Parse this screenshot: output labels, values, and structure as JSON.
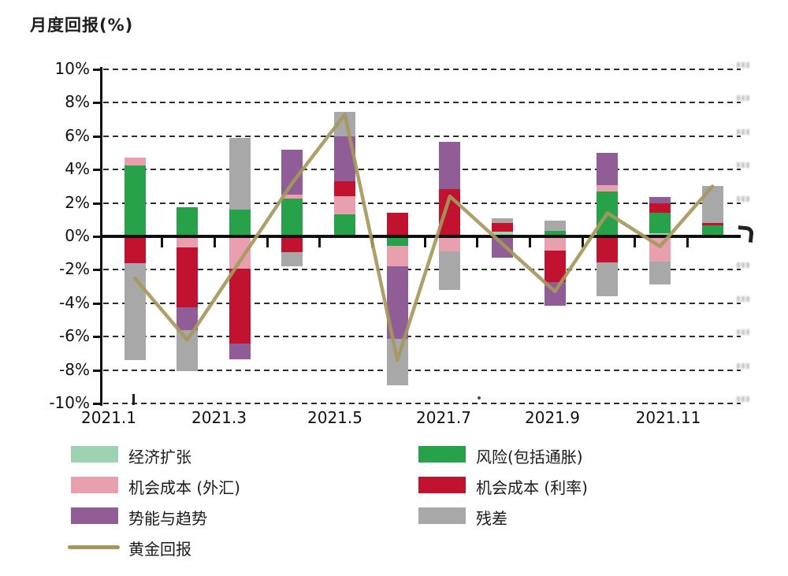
{
  "title": "月度回报(%)",
  "chart_data": {
    "type": "bar",
    "subtype": "stacked-bar-with-line-overlay",
    "title": "月度回报(%)",
    "categories": [
      "2021.1",
      "2021.2",
      "2021.3",
      "2021.4",
      "2021.5",
      "2021.6",
      "2021.7",
      "2021.8",
      "2021.9",
      "2021.10",
      "2021.11",
      "2021.12"
    ],
    "x_axis_tick_labels": [
      "2021.1",
      "2021.3",
      "2021.5",
      "2021.7",
      "2021.9",
      "2021.11"
    ],
    "y_axis": {
      "min": -10,
      "max": 10,
      "step": 2,
      "unit": "%",
      "tick_labels": [
        "10%",
        "8%",
        "6%",
        "4%",
        "2%",
        "0%",
        "-2%",
        "-4%",
        "-6%",
        "-8%",
        "-10%"
      ]
    },
    "grid": "dashed horizontal line every 2%, solid black zero line",
    "legend_position": "bottom, two columns",
    "stacking_rule": "segments stack outward from zero in series order, by sign",
    "series": [
      {
        "name": "经济扩张",
        "color": "#9ed3b1",
        "values": [
          0,
          0,
          0,
          0,
          0,
          0,
          0,
          0.3,
          0,
          0,
          0.2,
          0
        ]
      },
      {
        "name": "风险(包括通胀)",
        "color": "#27a24b",
        "values": [
          4.25,
          1.75,
          1.6,
          2.25,
          1.3,
          -0.55,
          0,
          0,
          0.35,
          2.7,
          1.2,
          0.65
        ]
      },
      {
        "name": "机会成本 (外汇)",
        "color": "#e9a0ae",
        "values": [
          0.45,
          -0.65,
          -1.95,
          0.25,
          1.1,
          -1.25,
          -0.9,
          0,
          -0.85,
          0.35,
          -1.5,
          0
        ]
      },
      {
        "name": "机会成本 (利率)",
        "color": "#c11330",
        "values": [
          -1.6,
          -3.6,
          -4.45,
          -0.95,
          0.9,
          1.4,
          2.85,
          0.5,
          -1.9,
          -1.55,
          0.6,
          0.15
        ]
      },
      {
        "name": "势能与趋势",
        "color": "#905d97",
        "values": [
          0,
          -1.35,
          -0.95,
          2.7,
          2.7,
          -4.35,
          2.8,
          -1.25,
          -1.4,
          1.95,
          0.35,
          0
        ]
      },
      {
        "name": "残差",
        "color": "#a8a8a8",
        "values": [
          -5.8,
          -2.45,
          4.3,
          -0.85,
          1.45,
          -2.75,
          -2.3,
          0.3,
          0.6,
          -2.05,
          -1.4,
          2.2
        ]
      }
    ],
    "line_series": {
      "name": "黄金回报",
      "color": "#a6985c",
      "values": [
        -2.5,
        -6.2,
        -1.5,
        3.2,
        7.3,
        -7.4,
        2.4,
        -0.45,
        -3.3,
        1.4,
        -0.6,
        3.0
      ]
    }
  },
  "legend": {
    "left_column": [
      {
        "label": "经济扩张",
        "swatch": "box",
        "color": "#9ed3b1"
      },
      {
        "label": "机会成本 (外汇)",
        "swatch": "box",
        "color": "#e9a0ae"
      },
      {
        "label": "势能与趋势",
        "swatch": "box",
        "color": "#905d97"
      },
      {
        "label": "黄金回报",
        "swatch": "line",
        "color": "#a6985c"
      }
    ],
    "right_column": [
      {
        "label": "风险(包括通胀)",
        "swatch": "box",
        "color": "#27a24b"
      },
      {
        "label": "机会成本 (利率)",
        "swatch": "box",
        "color": "#c11330"
      },
      {
        "label": "残差",
        "swatch": "box",
        "color": "#a8a8a8"
      }
    ]
  }
}
